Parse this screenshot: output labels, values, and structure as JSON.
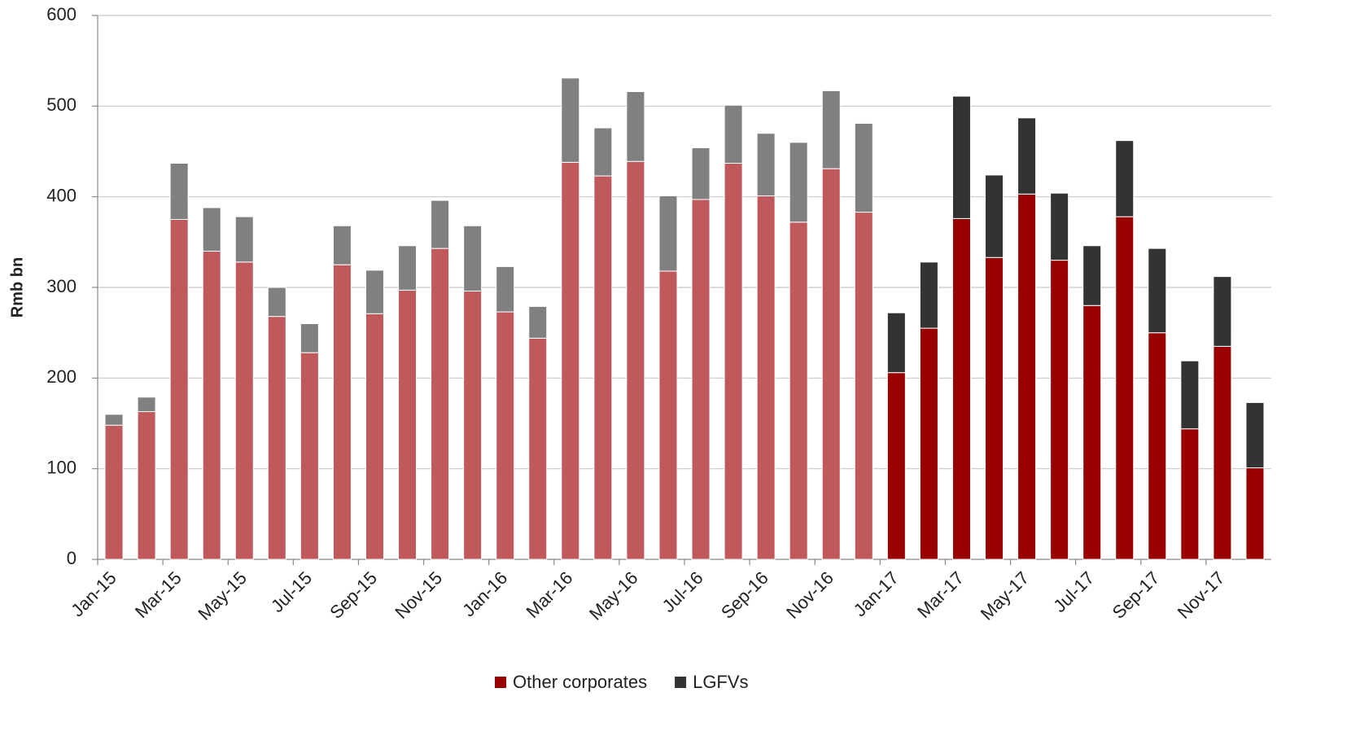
{
  "chart_data": {
    "type": "stacked_bar",
    "y_label": "Rmb bn",
    "categories": [
      "Jan-15",
      null,
      "Mar-15",
      null,
      "May-15",
      null,
      "Jul-15",
      null,
      "Sep-15",
      null,
      "Nov-15",
      null,
      "Jan-16",
      null,
      "Mar-16",
      null,
      "May-16",
      null,
      "Jul-16",
      null,
      "Sep-16",
      null,
      "Nov-16",
      null,
      "Jan-17",
      null,
      "Mar-17",
      null,
      "May-17",
      null,
      "Jul-17",
      null,
      "Sep-17",
      null,
      "Nov-17",
      null
    ],
    "series": [
      {
        "name": "Other corporates",
        "color": "#990000",
        "bar_colors": [
          "#c0595c",
          "#c0595c",
          "#c0595c",
          "#c0595c",
          "#c0595c",
          "#c0595c",
          "#c0595c",
          "#c0595c",
          "#c0595c",
          "#c0595c",
          "#c0595c",
          "#c0595c",
          "#c0595c",
          "#c0595c",
          "#c0595c",
          "#c0595c",
          "#c0595c",
          "#c0595c",
          "#c0595c",
          "#c0595c",
          "#c0595c",
          "#c0595c",
          "#c0595c",
          "#c0595c",
          "#990000",
          "#990000",
          "#990000",
          "#990000",
          "#990000",
          "#990000",
          "#990000",
          "#990000",
          "#990000",
          "#990000",
          "#990000",
          "#990000"
        ],
        "values": [
          148,
          163,
          375,
          340,
          328,
          268,
          228,
          325,
          271,
          297,
          343,
          296,
          273,
          244,
          438,
          423,
          439,
          318,
          397,
          437,
          401,
          372,
          431,
          383,
          206,
          255,
          376,
          333,
          403,
          330,
          280,
          378,
          250,
          144,
          235,
          101
        ]
      },
      {
        "name": "LGFVs",
        "color": "#333333",
        "bar_colors": [
          "#808080",
          "#808080",
          "#808080",
          "#808080",
          "#808080",
          "#808080",
          "#808080",
          "#808080",
          "#808080",
          "#808080",
          "#808080",
          "#808080",
          "#808080",
          "#808080",
          "#808080",
          "#808080",
          "#808080",
          "#808080",
          "#808080",
          "#808080",
          "#808080",
          "#808080",
          "#808080",
          "#808080",
          "#333333",
          "#333333",
          "#333333",
          "#333333",
          "#333333",
          "#333333",
          "#333333",
          "#333333",
          "#333333",
          "#333333",
          "#333333",
          "#333333"
        ],
        "values": [
          12,
          16,
          62,
          48,
          50,
          32,
          32,
          43,
          48,
          49,
          53,
          72,
          50,
          35,
          93,
          53,
          77,
          83,
          57,
          64,
          69,
          88,
          86,
          98,
          66,
          73,
          135,
          91,
          84,
          74,
          66,
          84,
          93,
          75,
          77,
          72
        ]
      }
    ],
    "ylim": [
      0,
      600
    ],
    "yticks": [
      0,
      100,
      200,
      300,
      400,
      500,
      600
    ],
    "grid": true,
    "legend": "bottom"
  }
}
